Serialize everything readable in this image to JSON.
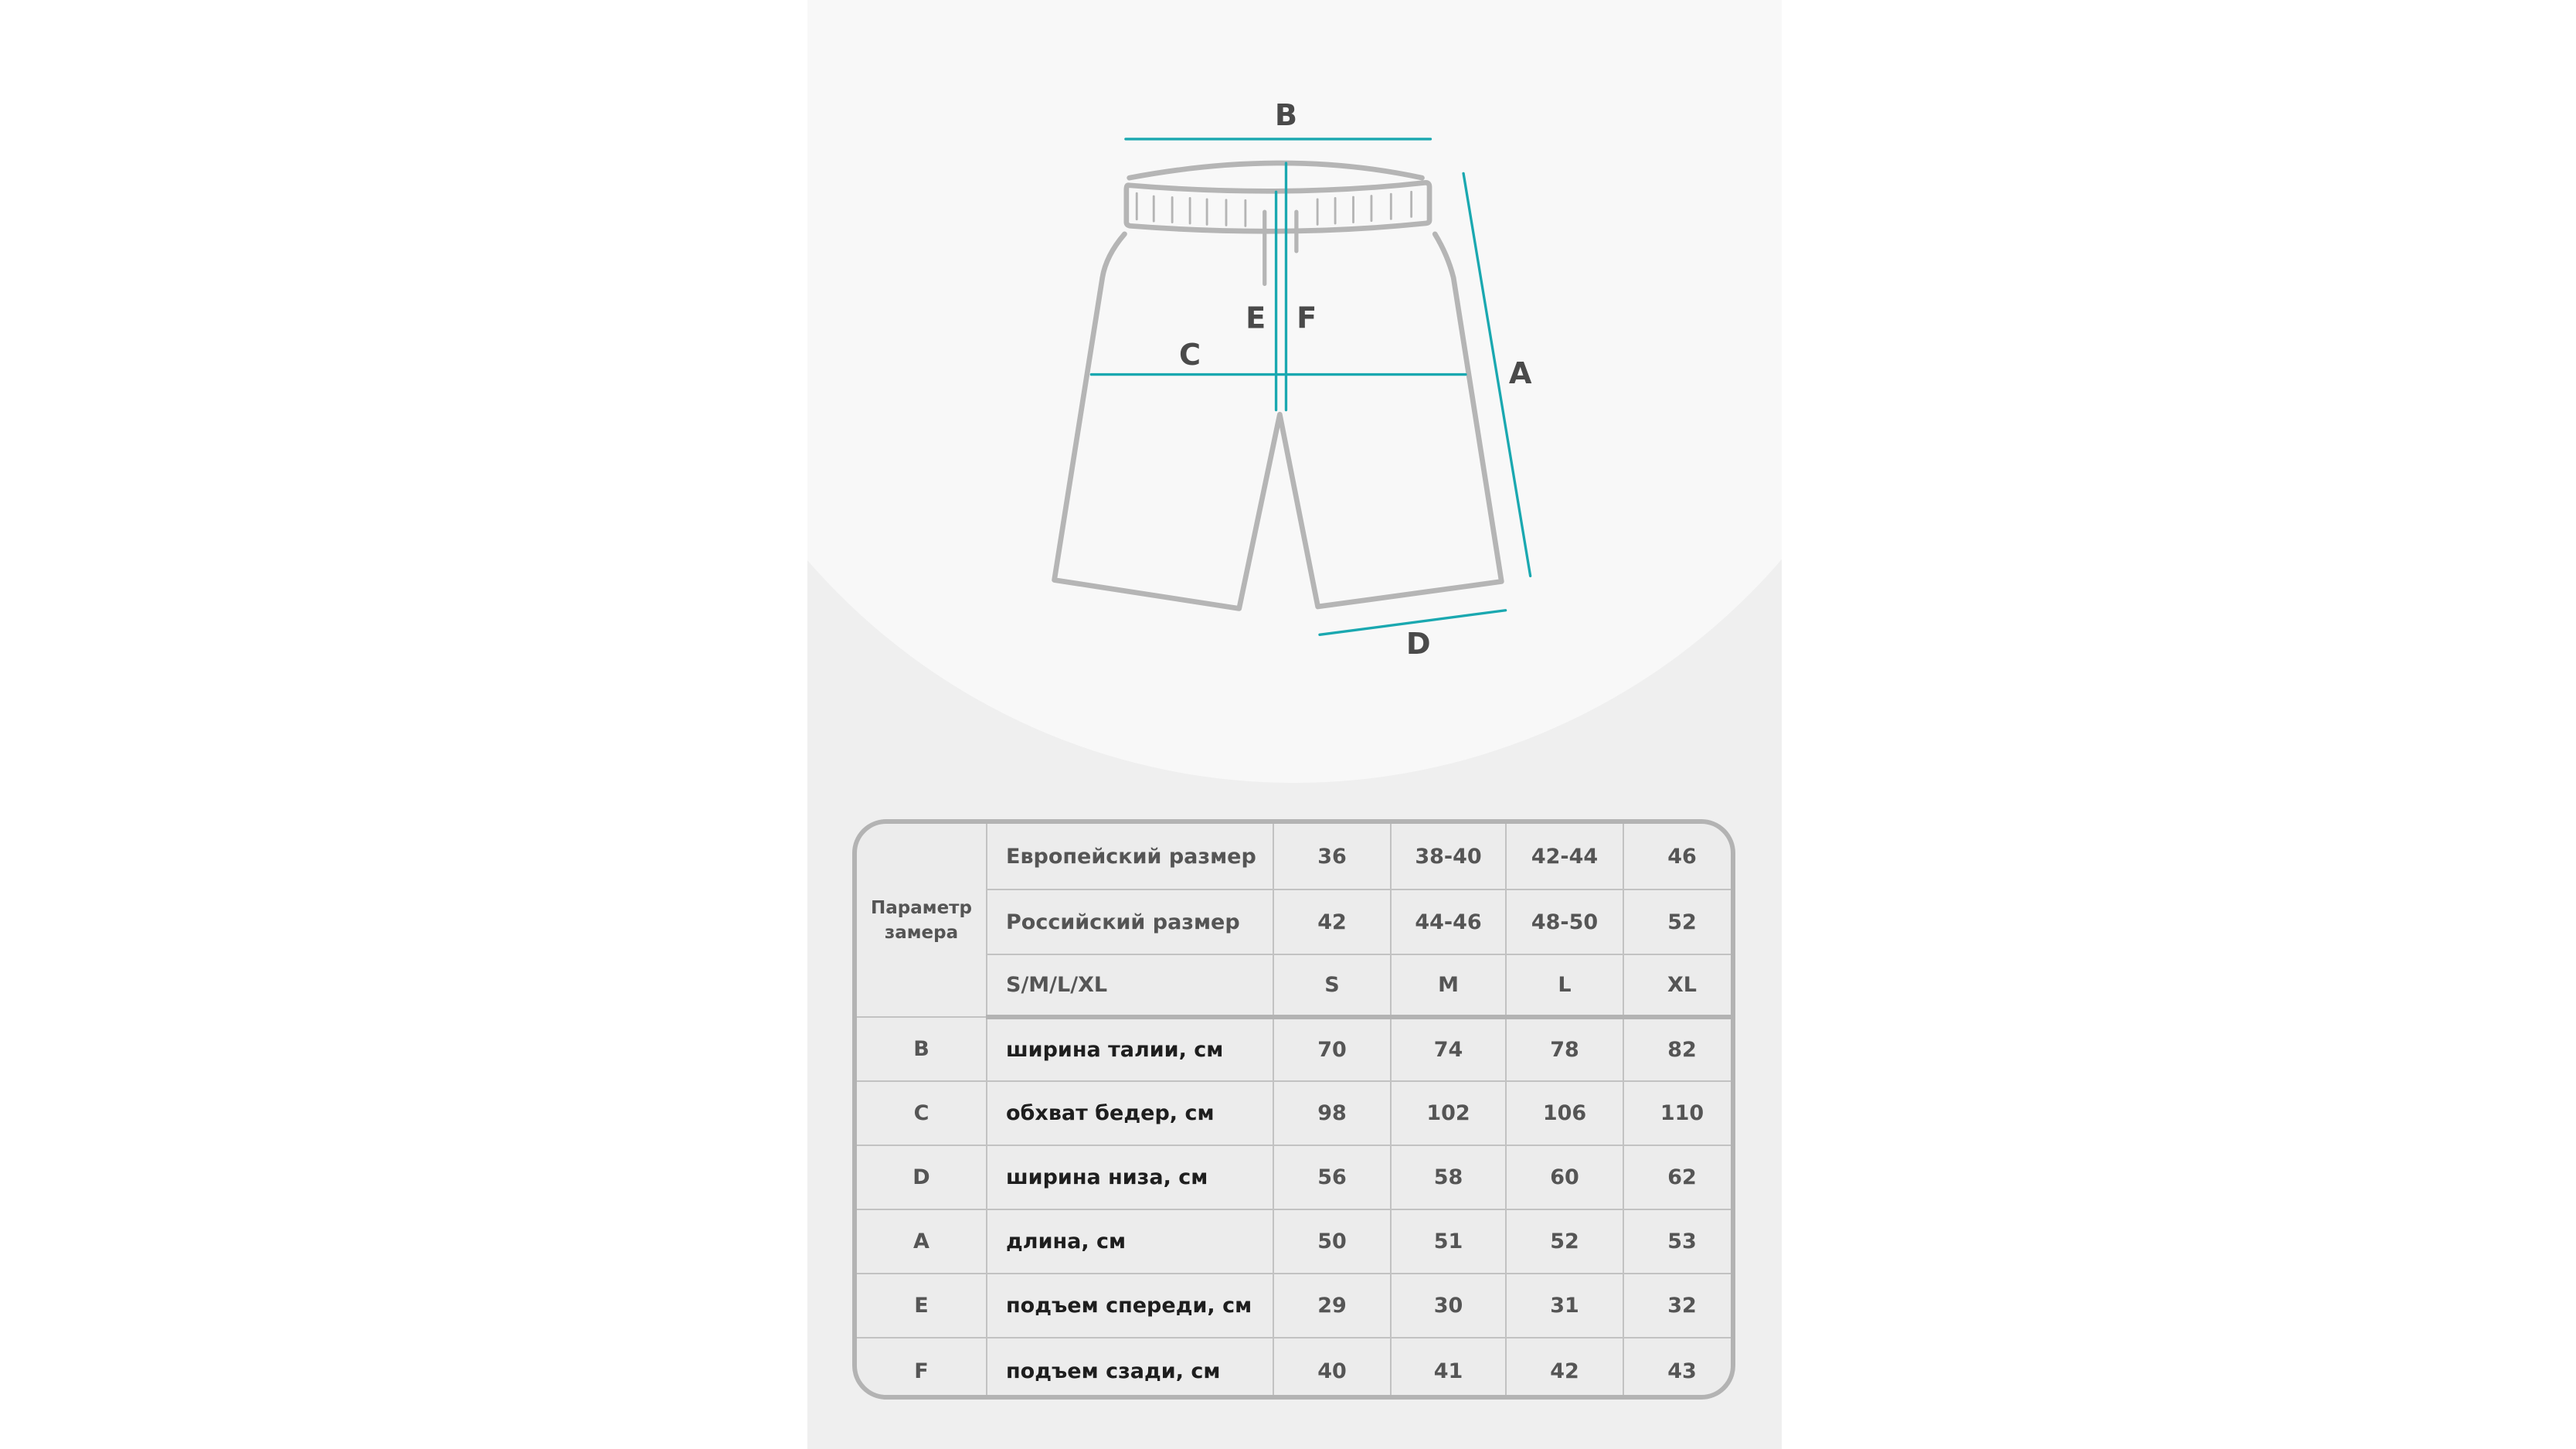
{
  "diagram": {
    "labels": {
      "B": "B",
      "E": "E",
      "F": "F",
      "C": "C",
      "A": "A",
      "D": "D"
    },
    "colors": {
      "outline": "#b5b5b5",
      "measure": "#1aa8b0",
      "label": "#4a4a4a"
    }
  },
  "table": {
    "param_header": "Параметр замера",
    "header_rows": [
      {
        "label": "Европейский размер",
        "values": [
          "36",
          "38-40",
          "42-44",
          "46"
        ]
      },
      {
        "label": "Российский размер",
        "values": [
          "42",
          "44-46",
          "48-50",
          "52"
        ]
      },
      {
        "label": "S/M/L/XL",
        "values": [
          "S",
          "M",
          "L",
          "XL"
        ]
      }
    ],
    "rows": [
      {
        "code": "B",
        "label": "ширина талии, см",
        "values": [
          "70",
          "74",
          "78",
          "82"
        ]
      },
      {
        "code": "C",
        "label": "обхват бедер, см",
        "values": [
          "98",
          "102",
          "106",
          "110"
        ]
      },
      {
        "code": "D",
        "label": "ширина низа, см",
        "values": [
          "56",
          "58",
          "60",
          "62"
        ]
      },
      {
        "code": "A",
        "label": "длина, см",
        "values": [
          "50",
          "51",
          "52",
          "53"
        ]
      },
      {
        "code": "E",
        "label": "подъем спереди, см",
        "values": [
          "29",
          "30",
          "31",
          "32"
        ]
      },
      {
        "code": "F",
        "label": "подъем сзади, см",
        "values": [
          "40",
          "41",
          "42",
          "43"
        ]
      }
    ]
  }
}
